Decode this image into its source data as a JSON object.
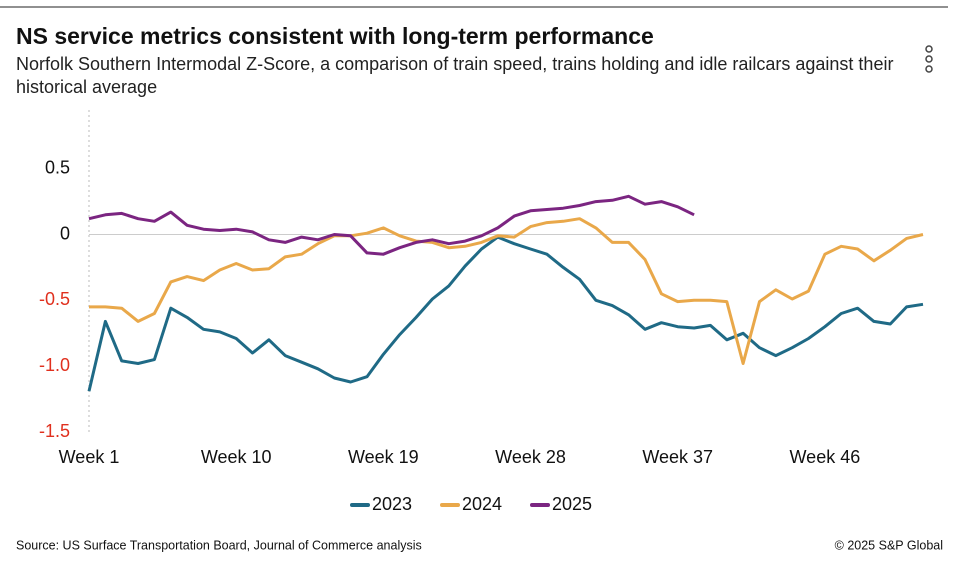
{
  "chart_data": {
    "type": "line",
    "title": "NS service metrics consistent with long-term performance",
    "subtitle": "Norfolk Southern Intermodal Z-Score, a comparison of train speed, trains holding and idle railcars against their historical average",
    "source": "Source: US Surface Transportation Board, Journal of Commerce analysis",
    "copyright": "© 2025 S&P Global",
    "categories": [
      "Week 1",
      null,
      null,
      null,
      null,
      null,
      null,
      null,
      null,
      "Week 10",
      null,
      null,
      null,
      null,
      null,
      null,
      null,
      null,
      "Week 19",
      null,
      null,
      null,
      null,
      null,
      null,
      null,
      null,
      "Week 28",
      null,
      null,
      null,
      null,
      null,
      null,
      null,
      null,
      "Week 37",
      null,
      null,
      null,
      null,
      null,
      null,
      null,
      null,
      "Week 46",
      null,
      null,
      null,
      null,
      null,
      null
    ],
    "series": [
      {
        "name": "2023",
        "color": "#1f6a86",
        "values": [
          -1.19,
          -0.66,
          -0.96,
          -0.98,
          -0.95,
          -0.56,
          -0.63,
          -0.72,
          -0.74,
          -0.79,
          -0.9,
          -0.8,
          -0.92,
          -0.97,
          -1.02,
          -1.09,
          -1.12,
          -1.08,
          -0.91,
          -0.76,
          -0.63,
          -0.49,
          -0.39,
          -0.24,
          -0.11,
          -0.02,
          -0.07,
          -0.11,
          -0.15,
          -0.25,
          -0.34,
          -0.5,
          -0.54,
          -0.61,
          -0.72,
          -0.67,
          -0.7,
          -0.71,
          -0.69,
          -0.8,
          -0.75,
          -0.86,
          -0.92,
          -0.86,
          -0.79,
          -0.7,
          -0.6,
          -0.56,
          -0.66,
          -0.68,
          -0.55,
          -0.53
        ]
      },
      {
        "name": "2024",
        "color": "#e9a84a",
        "values": [
          -0.55,
          -0.55,
          -0.56,
          -0.66,
          -0.6,
          -0.36,
          -0.32,
          -0.35,
          -0.27,
          -0.22,
          -0.27,
          -0.26,
          -0.17,
          -0.15,
          -0.07,
          -0.01,
          -0.01,
          0.01,
          0.05,
          -0.01,
          -0.05,
          -0.06,
          -0.1,
          -0.09,
          -0.06,
          -0.01,
          -0.02,
          0.06,
          0.09,
          0.1,
          0.12,
          0.05,
          -0.06,
          -0.06,
          -0.19,
          -0.45,
          -0.51,
          -0.5,
          -0.5,
          -0.51,
          -0.98,
          -0.51,
          -0.42,
          -0.49,
          -0.43,
          -0.15,
          -0.09,
          -0.11,
          -0.2,
          -0.12,
          -0.03,
          0.0
        ]
      },
      {
        "name": "2025",
        "color": "#7b2581",
        "values": [
          0.12,
          0.15,
          0.16,
          0.12,
          0.1,
          0.17,
          0.07,
          0.04,
          0.03,
          0.04,
          0.02,
          -0.04,
          -0.06,
          -0.02,
          -0.04,
          0.0,
          -0.01,
          -0.14,
          -0.15,
          -0.1,
          -0.06,
          -0.04,
          -0.07,
          -0.05,
          -0.01,
          0.05,
          0.14,
          0.18,
          0.19,
          0.2,
          0.22,
          0.25,
          0.26,
          0.29,
          0.23,
          0.25,
          0.21,
          0.15,
          null,
          null,
          null,
          null,
          null,
          null,
          null,
          null,
          null,
          null,
          null,
          null,
          null,
          null
        ]
      }
    ],
    "ylim": [
      -1.5,
      0.9
    ],
    "yticks": [
      0.5,
      0,
      -0.5,
      {
        "value": -1,
        "label": "-1.0"
      },
      -1.5
    ],
    "negative_tick_color": "#e0301e",
    "zero_line": true
  }
}
